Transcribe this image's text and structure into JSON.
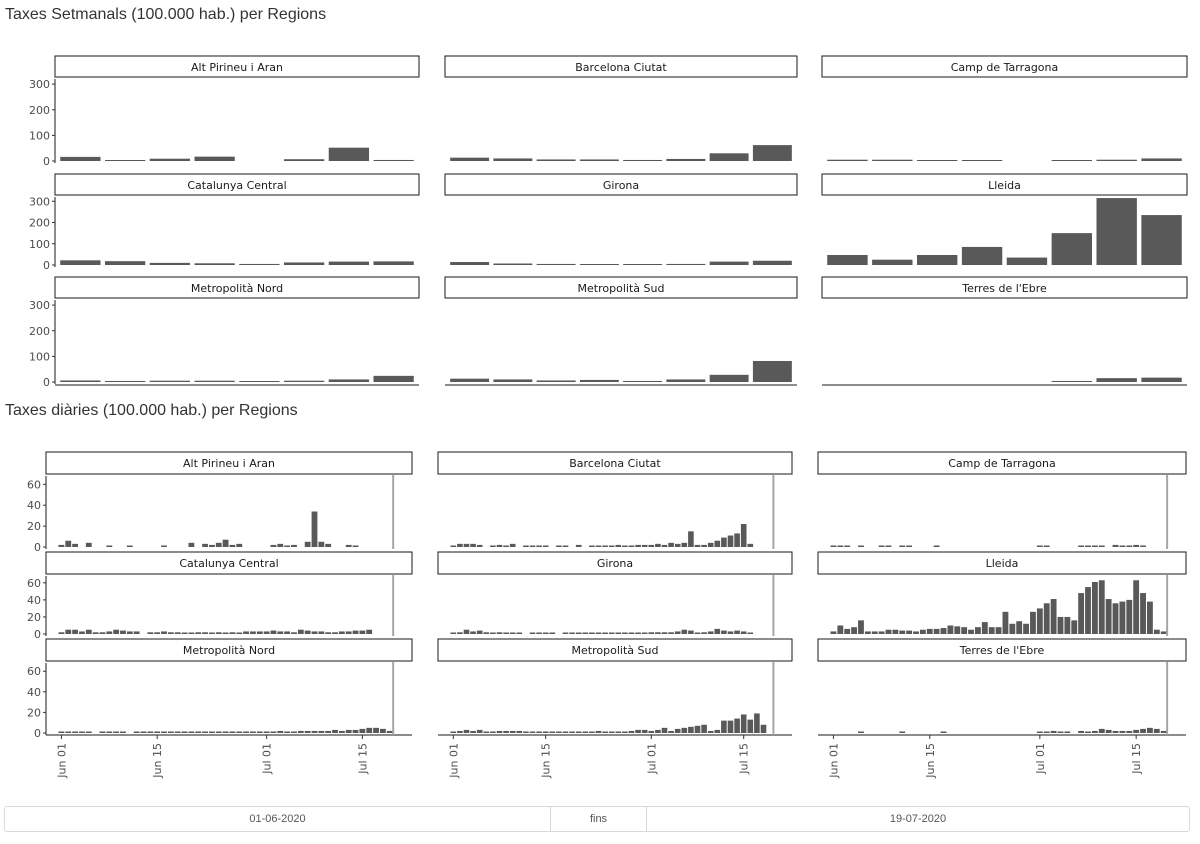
{
  "chart_data": [
    {
      "type": "bar",
      "title": "Taxes Setmanals (100.000 hab.) per Regions",
      "ylim": [
        0,
        320
      ],
      "yticks": [
        0,
        100,
        200,
        300
      ],
      "grid": false,
      "facet_rows": 3,
      "facet_cols": 3,
      "bar_color": "#595959",
      "panels": [
        {
          "name": "Alt Pirineu i Aran",
          "values": [
            16,
            3,
            9,
            17,
            0,
            7,
            52,
            4
          ]
        },
        {
          "name": "Barcelona Ciutat",
          "values": [
            13,
            10,
            6,
            6,
            4,
            8,
            30,
            62
          ]
        },
        {
          "name": "Camp de Tarragona",
          "values": [
            5,
            5,
            2,
            1,
            0,
            2,
            5,
            10
          ]
        },
        {
          "name": "Catalunya Central",
          "values": [
            22,
            18,
            10,
            8,
            5,
            12,
            16,
            17
          ]
        },
        {
          "name": "Girona",
          "values": [
            14,
            7,
            5,
            4,
            3,
            5,
            16,
            20
          ]
        },
        {
          "name": "Lleida",
          "values": [
            47,
            25,
            47,
            85,
            35,
            150,
            315,
            235
          ]
        },
        {
          "name": "Metropolità Nord",
          "values": [
            6,
            4,
            5,
            5,
            2,
            5,
            10,
            24
          ]
        },
        {
          "name": "Metropolità Sud",
          "values": [
            13,
            10,
            6,
            8,
            4,
            10,
            28,
            82
          ]
        },
        {
          "name": "Terres de l'Ebre",
          "values": [
            0,
            0,
            0,
            0,
            0,
            4,
            15,
            17
          ]
        }
      ]
    },
    {
      "type": "bar",
      "title": "Taxes diàries (100.000 hab.) per Regions",
      "ylim": [
        0,
        68
      ],
      "yticks": [
        0,
        20,
        40,
        60
      ],
      "grid": false,
      "facet_rows": 3,
      "facet_cols": 3,
      "bar_color": "#595959",
      "x_start": "2020-06-01",
      "x_end": "2020-07-19",
      "x_tick_labels": [
        "Jun 01",
        "Jun 15",
        "Jul 01",
        "Jul 15"
      ],
      "x_tick_dates": [
        "2020-06-01",
        "2020-06-15",
        "2020-07-01",
        "2020-07-15"
      ],
      "vline_date": "2020-07-19",
      "panels": [
        {
          "name": "Alt Pirineu i Aran",
          "values": [
            2,
            6,
            3,
            0,
            4,
            0,
            0,
            1,
            0,
            0,
            1,
            0,
            0,
            0,
            0,
            1,
            0,
            0,
            0,
            4,
            0,
            3,
            2,
            4,
            7,
            2,
            3,
            0,
            0,
            0,
            0,
            2,
            3,
            1,
            2,
            0,
            5,
            34,
            5,
            3,
            0,
            0,
            2,
            1,
            0,
            0,
            0,
            0,
            0
          ]
        },
        {
          "name": "Barcelona Ciutat",
          "values": [
            1,
            3,
            3,
            3,
            2,
            0,
            1,
            2,
            1,
            3,
            0,
            1,
            1,
            1,
            1,
            0,
            1,
            1,
            0,
            2,
            0,
            1,
            1,
            1,
            1,
            2,
            1,
            1,
            2,
            2,
            2,
            3,
            2,
            4,
            3,
            4,
            15,
            2,
            2,
            4,
            6,
            9,
            11,
            13,
            22,
            3,
            0,
            0,
            0
          ]
        },
        {
          "name": "Camp de Tarragona",
          "values": [
            1,
            1,
            1,
            0,
            1,
            0,
            0,
            1,
            1,
            0,
            1,
            1,
            0,
            0,
            0,
            1,
            0,
            0,
            0,
            0,
            0,
            0,
            0,
            0,
            0,
            0,
            0,
            0,
            0,
            0,
            1,
            1,
            0,
            0,
            0,
            0,
            1,
            1,
            1,
            1,
            0,
            2,
            1,
            1,
            2,
            1,
            0,
            0,
            0
          ]
        },
        {
          "name": "Catalunya Central",
          "values": [
            2,
            5,
            5,
            3,
            5,
            2,
            2,
            3,
            5,
            4,
            3,
            3,
            0,
            2,
            2,
            3,
            2,
            2,
            1,
            1,
            2,
            2,
            1,
            2,
            1,
            2,
            1,
            3,
            3,
            3,
            3,
            4,
            3,
            3,
            2,
            5,
            4,
            3,
            3,
            2,
            2,
            3,
            3,
            4,
            4,
            5,
            0,
            0,
            0
          ]
        },
        {
          "name": "Girona",
          "values": [
            1,
            2,
            5,
            3,
            4,
            2,
            1,
            2,
            1,
            1,
            1,
            0,
            1,
            1,
            1,
            1,
            0,
            1,
            1,
            1,
            1,
            1,
            1,
            1,
            1,
            1,
            1,
            1,
            1,
            1,
            2,
            2,
            2,
            2,
            3,
            5,
            4,
            1,
            2,
            3,
            6,
            4,
            3,
            4,
            3,
            1,
            0,
            0,
            0
          ]
        },
        {
          "name": "Lleida",
          "values": [
            3,
            10,
            6,
            8,
            16,
            3,
            3,
            3,
            5,
            5,
            4,
            4,
            3,
            5,
            6,
            6,
            7,
            10,
            9,
            8,
            5,
            8,
            14,
            8,
            8,
            26,
            12,
            15,
            12,
            26,
            30,
            36,
            41,
            20,
            20,
            16,
            48,
            55,
            61,
            63,
            41,
            36,
            38,
            40,
            63,
            48,
            38,
            5,
            3
          ]
        },
        {
          "name": "Metropolità Nord",
          "values": [
            1,
            1,
            1,
            1,
            1,
            0,
            1,
            1,
            1,
            1,
            0,
            1,
            1,
            1,
            1,
            1,
            1,
            1,
            1,
            1,
            1,
            1,
            1,
            1,
            1,
            1,
            1,
            1,
            1,
            1,
            1,
            1,
            2,
            1,
            1,
            2,
            2,
            2,
            2,
            2,
            3,
            2,
            3,
            3,
            4,
            5,
            5,
            4,
            2
          ]
        },
        {
          "name": "Metropolità Sud",
          "values": [
            1,
            2,
            3,
            2,
            3,
            1,
            1,
            2,
            2,
            2,
            2,
            1,
            1,
            1,
            1,
            1,
            1,
            1,
            1,
            1,
            1,
            1,
            2,
            1,
            1,
            1,
            1,
            2,
            3,
            3,
            2,
            3,
            5,
            2,
            4,
            5,
            6,
            7,
            8,
            2,
            3,
            12,
            12,
            14,
            18,
            13,
            19,
            8,
            0
          ]
        },
        {
          "name": "Terres de l'Ebre",
          "values": [
            0,
            0,
            0,
            0,
            1,
            0,
            0,
            0,
            0,
            0,
            1,
            0,
            0,
            0,
            0,
            0,
            1,
            0,
            0,
            0,
            0,
            0,
            0,
            0,
            0,
            0,
            0,
            0,
            0,
            0,
            1,
            1,
            2,
            1,
            1,
            0,
            2,
            1,
            2,
            4,
            3,
            2,
            2,
            2,
            3,
            4,
            5,
            4,
            2
          ]
        }
      ]
    }
  ],
  "date_range": {
    "from": "01-06-2020",
    "separator": "fins",
    "to": "19-07-2020"
  }
}
